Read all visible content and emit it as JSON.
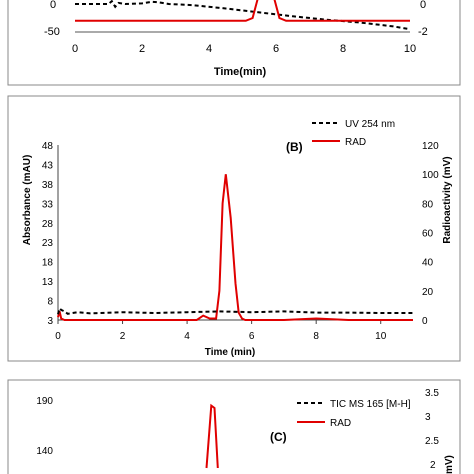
{
  "chart_data": [
    {
      "id": "A",
      "type": "line",
      "xlabel": "Time(min)",
      "xlim": [
        0,
        10
      ],
      "xticks": [
        0,
        2,
        4,
        6,
        8,
        10
      ],
      "yleft_ticks": [
        0,
        -50
      ],
      "yright_ticks": [
        0,
        -2
      ],
      "series": [
        {
          "color": "#000000",
          "dash": true,
          "axis": "left",
          "x": [
            0,
            1.0,
            1.1,
            1.2,
            1.3,
            1.5,
            2.0,
            2.3,
            2.5,
            2.8,
            3.5,
            4.5,
            5.5,
            6.5,
            7.5,
            8.5,
            9.5,
            10
          ],
          "y": [
            0,
            0,
            5,
            -5,
            2,
            0,
            1,
            4,
            3,
            0,
            -2,
            -8,
            -15,
            -22,
            -28,
            -33,
            -40,
            -45
          ]
        },
        {
          "color": "#e00000",
          "dash": false,
          "axis": "left",
          "x": [
            0,
            5.1,
            5.3,
            5.5,
            5.9,
            6.1,
            6.3,
            10
          ],
          "y": [
            -30,
            -30,
            -25,
            20,
            20,
            -25,
            -30,
            -30
          ]
        }
      ]
    },
    {
      "id": "B",
      "type": "line",
      "label": "(B)",
      "xlabel": "Time (min)",
      "ylabel": "Absorbance (mAU)",
      "y2label": "Radioactivity (mV)",
      "xlim": [
        0,
        11
      ],
      "ylim": [
        3,
        48
      ],
      "y2lim": [
        0,
        120
      ],
      "xticks": [
        0,
        2,
        4,
        6,
        8,
        10
      ],
      "yticks": [
        3,
        8,
        13,
        18,
        23,
        28,
        33,
        38,
        43,
        48
      ],
      "y2ticks": [
        0,
        20,
        40,
        60,
        80,
        100,
        120
      ],
      "series": [
        {
          "name": "UV 254 nm",
          "color": "#000000",
          "dash": true,
          "axis": "left",
          "x": [
            0,
            0.05,
            0.1,
            0.2,
            0.3,
            0.6,
            1.0,
            2.0,
            3.0,
            4.0,
            5.0,
            6.0,
            7.0,
            8.0,
            9.0,
            10.0,
            11.0
          ],
          "y": [
            4.5,
            6.0,
            5.6,
            5.2,
            4.6,
            5.0,
            4.7,
            5.0,
            4.8,
            5.0,
            5.2,
            5.0,
            5.2,
            4.9,
            4.9,
            4.8,
            4.8
          ]
        },
        {
          "name": "RAD",
          "color": "#e00000",
          "dash": false,
          "axis": "right",
          "x": [
            0,
            0.05,
            0.1,
            0.2,
            4.3,
            4.5,
            4.7,
            4.9,
            5.0,
            5.1,
            5.2,
            5.35,
            5.5,
            5.6,
            5.7,
            5.8,
            6.0,
            7.0,
            8.0,
            9.0,
            10.0,
            11.0
          ],
          "y": [
            2,
            6,
            1,
            0,
            0,
            3,
            1,
            1,
            20,
            80,
            100,
            70,
            25,
            5,
            1,
            0,
            0,
            0,
            1,
            0,
            0,
            0
          ]
        }
      ]
    },
    {
      "id": "C",
      "type": "line",
      "label": "(C)",
      "y2label_fragment": "mV)",
      "yticks": [
        190,
        140
      ],
      "y2ticks": [
        3.5,
        3,
        2.5,
        2
      ],
      "series": [
        {
          "name": "TIC MS 165 [M-H]",
          "color": "#000000",
          "dash": true,
          "axis": "left"
        },
        {
          "name": "RAD",
          "color": "#e00000",
          "dash": false,
          "axis": "right",
          "x": [
            4.6,
            4.75,
            4.85,
            4.95
          ],
          "y": [
            2.0,
            3.3,
            3.25,
            2.0
          ]
        }
      ]
    }
  ]
}
